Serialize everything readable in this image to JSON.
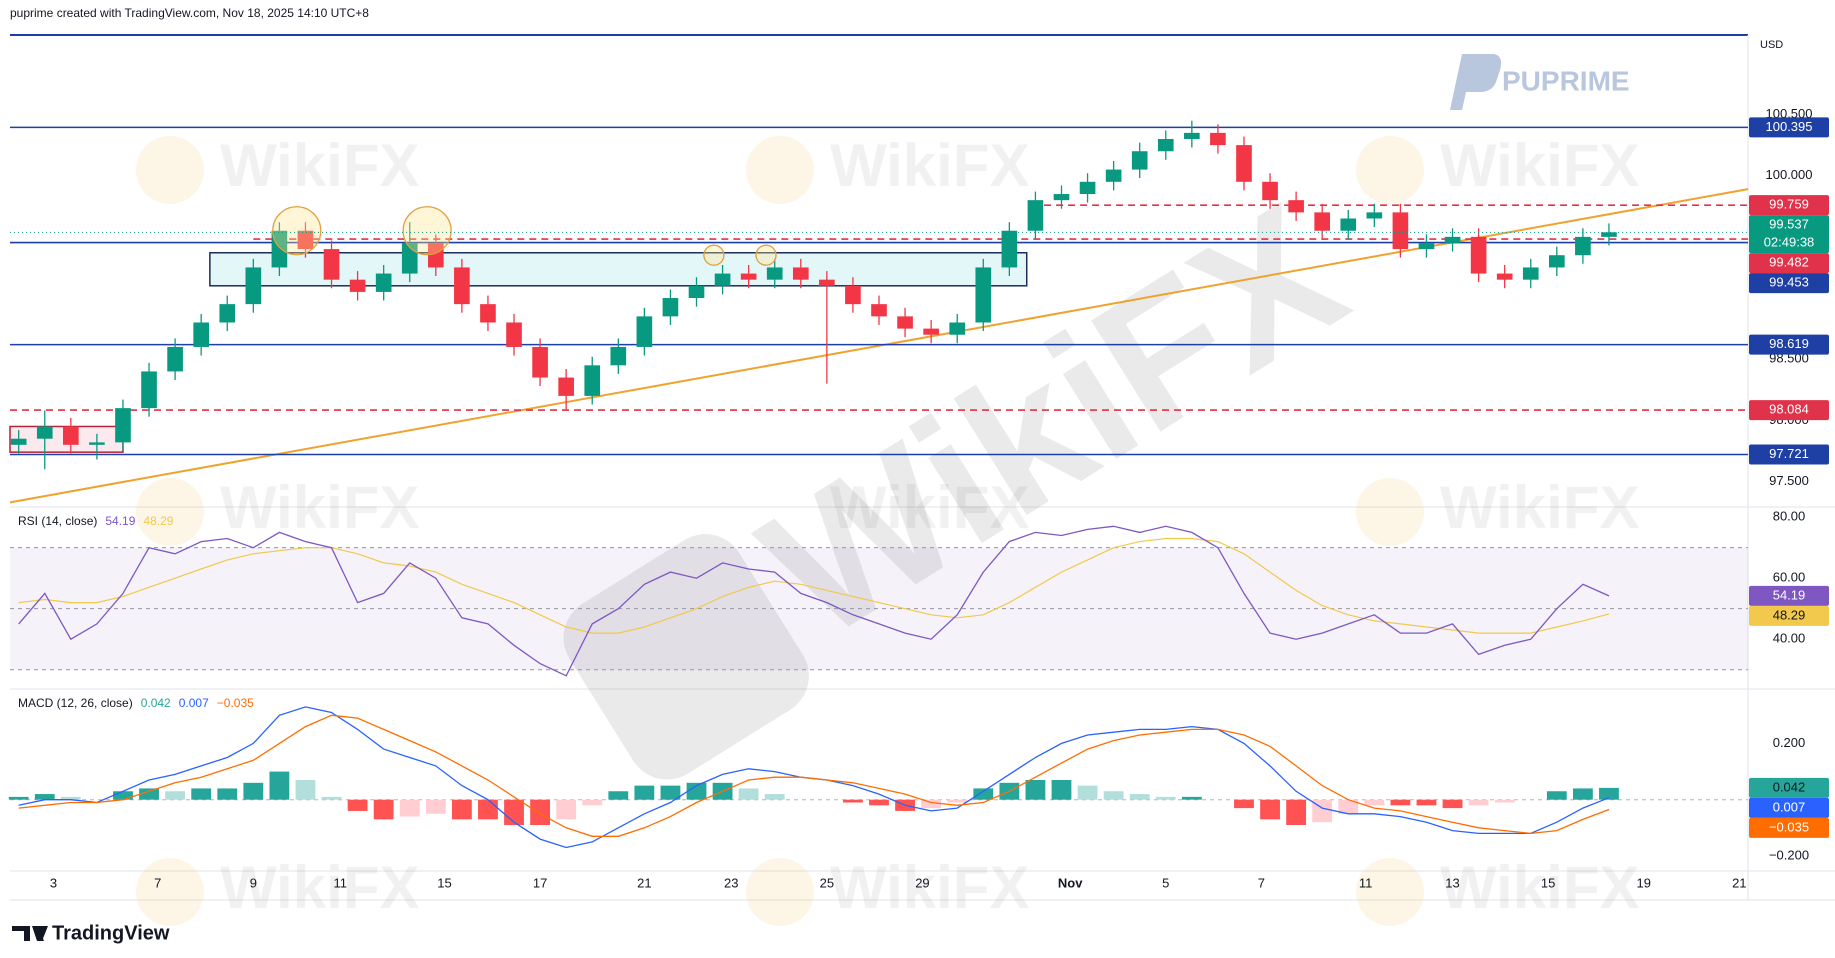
{
  "header": "puprime created with TradingView.com, Nov 18, 2025 14:10 UTC+8",
  "footer": "TradingView",
  "logo": "PUPRIME",
  "watermark": "WikiFX",
  "chart_data": [
    {
      "type": "candlestick",
      "currency": "USD",
      "x": [
        1,
        4,
        7,
        10,
        13,
        16,
        19,
        22,
        25,
        28,
        31,
        34,
        37,
        40,
        43,
        46,
        49,
        52,
        55,
        58,
        61,
        64,
        67,
        70,
        73,
        76,
        79,
        82,
        85,
        88,
        91,
        94,
        97,
        100,
        103,
        106,
        109,
        112,
        115,
        118,
        121,
        124,
        127,
        130,
        133,
        136,
        139,
        142,
        145,
        148,
        151,
        154,
        157,
        160,
        163,
        166,
        169,
        172,
        175,
        178,
        181,
        184
      ],
      "open": [
        97.8,
        97.85,
        97.95,
        97.8,
        97.82,
        98.1,
        98.4,
        98.6,
        98.8,
        98.95,
        99.25,
        99.55,
        99.4,
        99.15,
        99.05,
        99.2,
        99.45,
        99.25,
        98.95,
        98.8,
        98.6,
        98.35,
        98.2,
        98.45,
        98.6,
        98.85,
        99,
        99.1,
        99.2,
        99.15,
        99.25,
        99.15,
        99.1,
        98.95,
        98.85,
        98.75,
        98.7,
        98.8,
        99.25,
        99.55,
        99.8,
        99.85,
        99.95,
        100.05,
        100.2,
        100.3,
        100.35,
        100.25,
        99.95,
        99.8,
        99.7,
        99.55,
        99.65,
        99.7,
        99.4,
        99.45,
        99.5,
        99.2,
        99.15,
        99.25,
        99.35,
        99.5
      ],
      "high": [
        97.92,
        98.08,
        98.02,
        97.89,
        98.17,
        98.47,
        98.67,
        98.87,
        99.02,
        99.32,
        99.62,
        99.62,
        99.47,
        99.22,
        99.27,
        99.62,
        99.52,
        99.32,
        99.02,
        98.87,
        98.67,
        98.42,
        98.52,
        98.67,
        98.92,
        99.07,
        99.17,
        99.27,
        99.27,
        99.32,
        99.32,
        99.22,
        99.17,
        99.02,
        98.92,
        98.82,
        98.87,
        99.32,
        99.62,
        99.87,
        99.92,
        100.02,
        100.12,
        100.27,
        100.37,
        100.45,
        100.42,
        100.32,
        100.02,
        99.87,
        99.77,
        99.72,
        99.77,
        99.77,
        99.52,
        99.57,
        99.57,
        99.27,
        99.32,
        99.42,
        99.57,
        99.61
      ],
      "low": [
        97.73,
        97.6,
        97.73,
        97.68,
        97.75,
        98.03,
        98.33,
        98.53,
        98.73,
        98.88,
        99.18,
        99.33,
        99.08,
        98.98,
        98.98,
        99.13,
        99.18,
        98.88,
        98.73,
        98.53,
        98.28,
        98.08,
        98.13,
        98.38,
        98.53,
        98.78,
        98.93,
        99.03,
        99.08,
        99.08,
        99.08,
        98.3,
        98.88,
        98.78,
        98.68,
        98.63,
        98.63,
        98.73,
        99.18,
        99.48,
        99.73,
        99.78,
        99.88,
        99.98,
        100.13,
        100.23,
        100.18,
        99.88,
        99.73,
        99.63,
        99.48,
        99.48,
        99.58,
        99.33,
        99.33,
        99.38,
        99.13,
        99.08,
        99.08,
        99.18,
        99.28,
        99.43
      ],
      "close": [
        97.85,
        97.95,
        97.8,
        97.82,
        98.1,
        98.4,
        98.6,
        98.8,
        98.95,
        99.25,
        99.55,
        99.4,
        99.15,
        99.05,
        99.2,
        99.45,
        99.25,
        98.95,
        98.8,
        98.6,
        98.35,
        98.2,
        98.45,
        98.6,
        98.85,
        99,
        99.1,
        99.2,
        99.15,
        99.25,
        99.15,
        99.1,
        98.95,
        98.85,
        98.75,
        98.7,
        98.8,
        99.25,
        99.55,
        99.8,
        99.85,
        99.95,
        100.05,
        100.2,
        100.3,
        100.35,
        100.25,
        99.95,
        99.8,
        99.7,
        99.55,
        99.65,
        99.7,
        99.4,
        99.45,
        99.5,
        99.2,
        99.15,
        99.25,
        99.35,
        99.5,
        99.537
      ],
      "up_color": "#089981",
      "down_color": "#f23645",
      "countdown": "02:49:38",
      "xlim": [
        0,
        200
      ],
      "ylim": [
        97.3,
        101.15
      ],
      "yticks": [
        {
          "value": 97.5,
          "label": "97.500"
        },
        {
          "value": 98,
          "label": "98.000"
        },
        {
          "value": 98.5,
          "label": "98.500"
        },
        {
          "value": 100,
          "label": "100.000"
        },
        {
          "value": 100.5,
          "label": "100.500"
        }
      ],
      "levels": [
        {
          "value": 100.395,
          "color": "#1e3fa3",
          "style": "solid"
        },
        {
          "value": 99.759,
          "color": "#e0324a",
          "style": "dashed",
          "from": 119
        },
        {
          "value": 99.482,
          "color": "#e0324a",
          "style": "dashed",
          "from": 28
        },
        {
          "value": 99.453,
          "color": "#1e3fa3",
          "style": "solid"
        },
        {
          "value": 98.619,
          "color": "#1e3fa3",
          "style": "solid"
        },
        {
          "value": 98.084,
          "color": "#e0324a",
          "style": "dashed"
        },
        {
          "value": 97.721,
          "color": "#1e3fa3",
          "style": "solid"
        }
      ],
      "trendline": {
        "x": [
          0,
          200
        ],
        "values": [
          97.33,
          99.89
        ],
        "color": "#f0a22e"
      },
      "zones": [
        {
          "x": [
            23,
            117
          ],
          "values": [
            99.1,
            99.37
          ],
          "color": "#1e2d5a",
          "fill": "#e3f6f8"
        },
        {
          "x": [
            0,
            13
          ],
          "values": [
            97.74,
            97.95
          ],
          "color": "#b2243d",
          "fill": "#fbe9ee"
        }
      ],
      "highlights": [
        {
          "x": 33,
          "value": 99.55,
          "size": "large"
        },
        {
          "x": 48,
          "value": 99.55,
          "size": "large"
        },
        {
          "x": 81,
          "value": 99.35,
          "size": "small"
        },
        {
          "x": 87,
          "value": 99.35,
          "size": "small"
        }
      ]
    },
    {
      "type": "line",
      "title": "RSI (14, close)",
      "x": [
        1,
        4,
        7,
        10,
        13,
        16,
        19,
        22,
        25,
        28,
        31,
        34,
        37,
        40,
        43,
        46,
        49,
        52,
        55,
        58,
        61,
        64,
        67,
        70,
        73,
        76,
        79,
        82,
        85,
        88,
        91,
        94,
        97,
        100,
        103,
        106,
        109,
        112,
        115,
        118,
        121,
        124,
        127,
        130,
        133,
        136,
        139,
        142,
        145,
        148,
        151,
        154,
        157,
        160,
        163,
        166,
        169,
        172,
        175,
        178,
        181,
        184
      ],
      "series": [
        {
          "color": "#7e57c2",
          "values": [
            45,
            55,
            40,
            45,
            55,
            70,
            68,
            72,
            73,
            70,
            75,
            72,
            70,
            52,
            55,
            65,
            60,
            47,
            45,
            38,
            32,
            28,
            45,
            50,
            58,
            62,
            60,
            65,
            63,
            62,
            55,
            52,
            48,
            45,
            42,
            40,
            48,
            62,
            72,
            75,
            74,
            76,
            77,
            75,
            77,
            75,
            70,
            55,
            42,
            40,
            42,
            45,
            48,
            42,
            42,
            45,
            35,
            38,
            40,
            50,
            58,
            54.19
          ]
        },
        {
          "color": "#f2c94c",
          "values": [
            52,
            53,
            52,
            52,
            54,
            57,
            60,
            63,
            66,
            68,
            69,
            70,
            70,
            68,
            65,
            64,
            62,
            58,
            55,
            52,
            48,
            44,
            42,
            42,
            44,
            47,
            50,
            54,
            57,
            59,
            58,
            56,
            54,
            52,
            50,
            48,
            47,
            48,
            52,
            57,
            62,
            66,
            70,
            72,
            73,
            73,
            72,
            68,
            62,
            56,
            51,
            48,
            46,
            45,
            44,
            43,
            42,
            42,
            42,
            44,
            46,
            48.29
          ]
        }
      ],
      "band": [
        30,
        70
      ],
      "midline": 50,
      "band_color": "#7e57c2",
      "xlim": [
        0,
        200
      ],
      "ylim": [
        24,
        83
      ],
      "yticks": [
        {
          "value": 40,
          "label": "40.00"
        },
        {
          "value": 60,
          "label": "60.00"
        },
        {
          "value": 80,
          "label": "80.00"
        }
      ]
    },
    {
      "type": "combo",
      "title": "MACD (12, 26, close)",
      "x": [
        1,
        4,
        7,
        10,
        13,
        16,
        19,
        22,
        25,
        28,
        31,
        34,
        37,
        40,
        43,
        46,
        49,
        52,
        55,
        58,
        61,
        64,
        67,
        70,
        73,
        76,
        79,
        82,
        85,
        88,
        91,
        94,
        97,
        100,
        103,
        106,
        109,
        112,
        115,
        118,
        121,
        124,
        127,
        130,
        133,
        136,
        139,
        142,
        145,
        148,
        151,
        154,
        157,
        160,
        163,
        166,
        169,
        172,
        175,
        178,
        181,
        184
      ],
      "series": [
        {
          "kind": "histogram",
          "colors": [
            "#26a69a",
            "#b2dfdb",
            "#ff5252",
            "#ffcdd2"
          ],
          "values": [
            0.01,
            0.02,
            0.01,
            0,
            0.03,
            0.04,
            0.03,
            0.04,
            0.04,
            0.06,
            0.1,
            0.07,
            0.01,
            -0.04,
            -0.07,
            -0.06,
            -0.05,
            -0.07,
            -0.07,
            -0.09,
            -0.09,
            -0.07,
            -0.02,
            0.03,
            0.05,
            0.05,
            0.06,
            0.06,
            0.04,
            0.02,
            0,
            0,
            -0.01,
            -0.02,
            -0.04,
            -0.03,
            -0.01,
            0.04,
            0.06,
            0.07,
            0.07,
            0.05,
            0.03,
            0.02,
            0.01,
            0.01,
            0,
            -0.03,
            -0.07,
            -0.09,
            -0.08,
            -0.05,
            -0.02,
            -0.02,
            -0.02,
            -0.03,
            -0.02,
            -0.01,
            0,
            0.03,
            0.04,
            0.042
          ]
        },
        {
          "kind": "line",
          "color": "#2962ff",
          "values": [
            -0.02,
            0,
            0,
            -0.01,
            0.03,
            0.07,
            0.09,
            0.12,
            0.15,
            0.2,
            0.3,
            0.33,
            0.31,
            0.25,
            0.18,
            0.15,
            0.12,
            0.05,
            0,
            -0.08,
            -0.14,
            -0.17,
            -0.15,
            -0.1,
            -0.05,
            -0.01,
            0.05,
            0.09,
            0.11,
            0.1,
            0.08,
            0.07,
            0.05,
            0.02,
            -0.02,
            -0.04,
            -0.03,
            0.03,
            0.09,
            0.15,
            0.2,
            0.23,
            0.24,
            0.25,
            0.25,
            0.26,
            0.25,
            0.2,
            0.12,
            0.03,
            -0.03,
            -0.05,
            -0.05,
            -0.06,
            -0.08,
            -0.11,
            -0.12,
            -0.12,
            -0.12,
            -0.08,
            -0.03,
            0.007
          ]
        },
        {
          "kind": "line",
          "color": "#ff6d00",
          "values": [
            -0.03,
            -0.02,
            -0.01,
            -0.01,
            0,
            0.03,
            0.06,
            0.08,
            0.11,
            0.14,
            0.2,
            0.26,
            0.3,
            0.29,
            0.25,
            0.21,
            0.17,
            0.12,
            0.07,
            0.01,
            -0.05,
            -0.1,
            -0.13,
            -0.13,
            -0.1,
            -0.06,
            -0.01,
            0.03,
            0.07,
            0.08,
            0.08,
            0.07,
            0.06,
            0.04,
            0.02,
            -0.01,
            -0.02,
            -0.01,
            0.03,
            0.08,
            0.13,
            0.18,
            0.21,
            0.23,
            0.24,
            0.25,
            0.25,
            0.23,
            0.19,
            0.12,
            0.05,
            0,
            -0.03,
            -0.04,
            -0.06,
            -0.08,
            -0.1,
            -0.11,
            -0.12,
            -0.11,
            -0.07,
            -0.035
          ],
          "value_labels": [
            null,
            null,
            null,
            null,
            null,
            null,
            null,
            null,
            null,
            null,
            null,
            null,
            null,
            null,
            null,
            null,
            null,
            null,
            null,
            null,
            null,
            null,
            null,
            null,
            null,
            null,
            null,
            null,
            null,
            null,
            null,
            null,
            null,
            null,
            null,
            null,
            null,
            null,
            null,
            null,
            null,
            null,
            null,
            null,
            null,
            null,
            null,
            null,
            null,
            null,
            null,
            null,
            null,
            null,
            null,
            null,
            null,
            null,
            null,
            null,
            null,
            "−0.035"
          ]
        }
      ],
      "xlim": [
        0,
        200
      ],
      "ylim": [
        -0.25,
        0.39
      ],
      "yticks": [
        {
          "value": -0.2,
          "label": "−0.200"
        },
        {
          "value": 0.2,
          "label": "0.200"
        }
      ],
      "xticks": [
        {
          "value": 5,
          "label": "3"
        },
        {
          "value": 17,
          "label": "7"
        },
        {
          "value": 28,
          "label": "9"
        },
        {
          "value": 38,
          "label": "11"
        },
        {
          "value": 50,
          "label": "15"
        },
        {
          "value": 61,
          "label": "17"
        },
        {
          "value": 73,
          "label": "21"
        },
        {
          "value": 83,
          "label": "23"
        },
        {
          "value": 94,
          "label": "25"
        },
        {
          "value": 105,
          "label": "29"
        },
        {
          "value": 122,
          "label": "Nov"
        },
        {
          "value": 133,
          "label": "5"
        },
        {
          "value": 144,
          "label": "7"
        },
        {
          "value": 156,
          "label": "11"
        },
        {
          "value": 166,
          "label": "13"
        },
        {
          "value": 177,
          "label": "15"
        },
        {
          "value": 188,
          "label": "19"
        },
        {
          "value": 199,
          "label": "21"
        }
      ]
    }
  ]
}
